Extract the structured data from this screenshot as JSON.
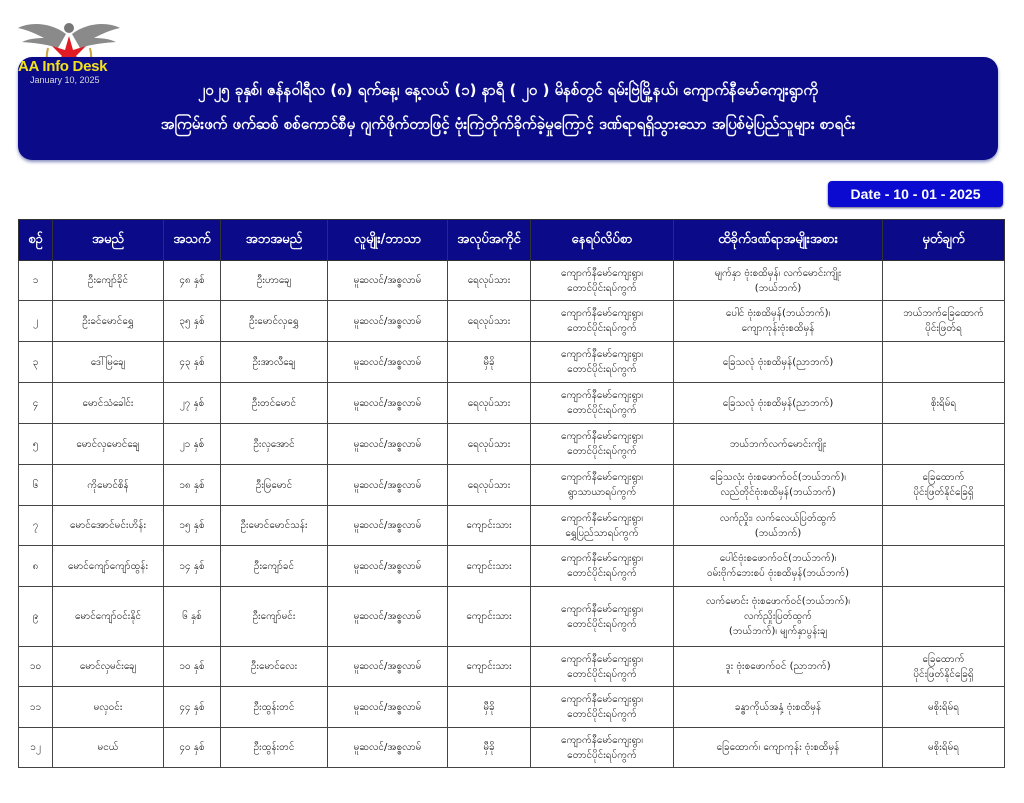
{
  "logo": {
    "brand": "AA Info Desk",
    "date": "January 10, 2025",
    "star_color": "#e01b24",
    "wing_color": "#8a8a8a"
  },
  "banner": {
    "line1": "၂၀၂၅ ခုနှစ်၊ ဇန်နဝါရီလ (၈) ရက်နေ့၊ နေ့လယ် (၁) နာရီ ( ၂၀ ) မိနစ်တွင် ရမ်းဗြဲမြို့နယ်၊ ကျောက်နီမော်ကျေးရွာကို",
    "line2": "အကြမ်းဖက် ဖက်ဆစ် စစ်ကောင်စီမှ ဂျက်ဖိုက်တာဖြင့် ဗုံးကြဲတိုက်ခိုက်ခဲ့မှုကြောင့် ဒဏ်ရာရရှိသွားသော အပြစ်မဲ့ပြည်သူများ စာရင်း",
    "color": "#0b0b8a"
  },
  "date_badge": "Date - 10 - 01 - 2025",
  "table": {
    "headers": [
      "စဉ်",
      "အမည်",
      "အသက်",
      "အဘအမည်",
      "လူမျိုး/ဘာသာ",
      "အလုပ်အကိုင်",
      "နေရပ်လိပ်စာ",
      "ထိခိုက်ဒဏ်ရာအမျိုးအစား",
      "မှတ်ချက်"
    ],
    "rows": [
      [
        "၁",
        "ဦးကျော်ခိုင်",
        "၄၈ နှစ်",
        "ဦးဟာချေ",
        "မူဆလင်/အစ္စလာမ်",
        "ရေလုပ်သား",
        [
          "ကျောက်နီမော်ကျေးရွာ၊",
          "တောင်ပိုင်းရပ်ကွက်"
        ],
        [
          "မျက်နှာ ဗုံးစထိမှန်၊ လက်မောင်းကျိုး",
          "(ဘယ်ဘက်)"
        ],
        ""
      ],
      [
        "၂",
        "ဦးခင်မောင်ရွှေ",
        "၃၅ နှစ်",
        "ဦးမောင်လှရွှေ",
        "မူဆလင်/အစ္စလာမ်",
        "ရေလုပ်သား",
        [
          "ကျောက်နီမော်ကျေးရွာ၊",
          "တောင်ပိုင်းရပ်ကွက်"
        ],
        [
          "ပေါင် ဗုံးစထိမှန်(ဘယ်ဘက်)၊",
          "ကျောကုန်းဗုံးစထိမှန်"
        ],
        [
          "ဘယ်ဘက်ခြေထောက်",
          "ပိုင်းဖြတ်ရ"
        ]
      ],
      [
        "၃",
        "ဒေါ်မြချေ",
        "၄၃ နှစ်",
        "ဦးအာလီချေ",
        "မူဆလင်/အစ္စလာမ်",
        "မှီခို",
        [
          "ကျောက်နီမော်ကျေးရွာ၊",
          "တောင်ပိုင်းရပ်ကွက်"
        ],
        [
          "ခြေသလုံ ဗုံးစထိမှန်(ညာဘက်)"
        ],
        ""
      ],
      [
        "၄",
        "မောင်သံခေါင်း",
        "၂၇ နှစ်",
        "ဦးတင်မောင်",
        "မူဆလင်/အစ္စလာမ်",
        "ရေလုပ်သား",
        [
          "ကျောက်နီမော်ကျေးရွာ၊",
          "တောင်ပိုင်းရပ်ကွက်"
        ],
        [
          "ခြေသလုံ ဗုံးစထိမှန်(ညာဘက်)"
        ],
        "စိုးရိမ်ရ"
      ],
      [
        "၅",
        "မောင်လှမောင်ချေ",
        "၂၁ နှစ်",
        "ဦးလှအောင်",
        "မူဆလင်/အစ္စလာမ်",
        "ရေလုပ်သား",
        [
          "ကျောက်နီမော်ကျေးရွာ၊",
          "တောင်ပိုင်းရပ်ကွက်"
        ],
        [
          "ဘယ်ဘက်လက်မောင်းကျိုး"
        ],
        ""
      ],
      [
        "၆",
        "ကိုမောင်စိန်",
        "၁၈ နှစ်",
        "ဦးမြမောင်",
        "မူဆလင်/အစ္စလာမ်",
        "ရေလုပ်သား",
        [
          "ကျောက်နီမော်ကျေးရွာ၊",
          "ရွာသာယာရပ်ကွက်"
        ],
        [
          "ခြေသလုံး ဗုံးစဖောက်ဝင်(ဘယ်ဘက်)၊",
          "လည်တိုင်ဗုံးစထိမှန်(ဘယ်ဘက်)"
        ],
        [
          "ခြေထောက်",
          "ပိုင်းဖြတ်နိုင်ခြေရှိ"
        ]
      ],
      [
        "၇",
        "မောင်အောင်မင်းဟိန်း",
        "၁၅ နှစ်",
        "ဦးမောင်မောင်သန်း",
        "မူဆလင်/အစ္စလာမ်",
        "ကျောင်းသား",
        [
          "ကျောက်နီမော်ကျေးရွာ၊",
          "ရွှေပြည်သာရပ်ကွက်"
        ],
        [
          "လက်ညှိုး၊ လက်လေယ်ပြတ်ထွက်",
          "(ဘယ်ဘက်)"
        ],
        ""
      ],
      [
        "၈",
        "မောင်ကျော်ကျော်ထွန်း",
        "၁၄ နှစ်",
        "ဦးကျော်ခင်",
        "မူဆလင်/အစ္စလာမ်",
        "ကျောင်းသား",
        [
          "ကျောက်နီမော်ကျေးရွာ၊",
          "တောင်ပိုင်းရပ်ကွက်"
        ],
        [
          "ပေါင်ဗုံးစဖောက်ဝင်(ဘယ်ဘက်)၊",
          "ဝမ်းဗိုက်ဘေးစပ် ဗုံးစထိမှန်(ဘယ်ဘက်)"
        ],
        ""
      ],
      [
        "၉",
        "မောင်ကျော်ဝင်းနိုင်",
        "၆ နှစ်",
        "ဦးကျော်မင်း",
        "မူဆလင်/အစ္စလာမ်",
        "ကျောင်းသား",
        [
          "ကျောက်နီမော်ကျေးရွာ၊",
          "တောင်ပိုင်းရပ်ကွက်"
        ],
        [
          "လက်မောင်း ဗုံးစဖောက်ဝင်(ဘယ်ဘက်)၊",
          "လက်ညှိုးပြတ်ထွက်",
          "(ဘယ်ဘက်)၊ မျက်နှာပွန်းချ"
        ],
        ""
      ],
      [
        "၁၀",
        "မောင်လှမင်းချေ",
        "၁၀ နှစ်",
        "ဦးမောင်လေး",
        "မူဆလင်/အစ္စလာမ်",
        "ကျောင်းသား",
        [
          "ကျောက်နီမော်ကျေးရွာ၊",
          "တောင်ပိုင်းရပ်ကွက်"
        ],
        [
          "ဒူး ဗုံးစဖောက်ဝင် (ညာဘက်)"
        ],
        [
          "ခြေထောက်",
          "ပိုင်းဖြတ်နိုင်ခြေရှိ"
        ]
      ],
      [
        "၁၁",
        "မလှဝင်း",
        "၄၄ နှစ်",
        "ဦးထွန်းတင်",
        "မူဆလင်/အစ္စလာမ်",
        "မှီခို",
        [
          "ကျောက်နီမော်ကျေးရွာ၊",
          "တောင်ပိုင်းရပ်ကွက်"
        ],
        [
          "ခန္ဓာကိုယ်အနှံ့ ဗုံးစထိမှန်"
        ],
        "မစိုးရိမ်ရ"
      ],
      [
        "၁၂",
        "မငယ်",
        "၄၀ နှစ်",
        "ဦးထွန်းတင်",
        "မူဆလင်/အစ္စလာမ်",
        "မှီခို",
        [
          "ကျောက်နီမော်ကျေးရွာ၊",
          "တောင်ပိုင်းရပ်ကွက်"
        ],
        [
          "ခြေထောက်၊ ကျောကုန်း ဗုံးစထိမှန်"
        ],
        "မစိုးရိမ်ရ"
      ]
    ]
  }
}
